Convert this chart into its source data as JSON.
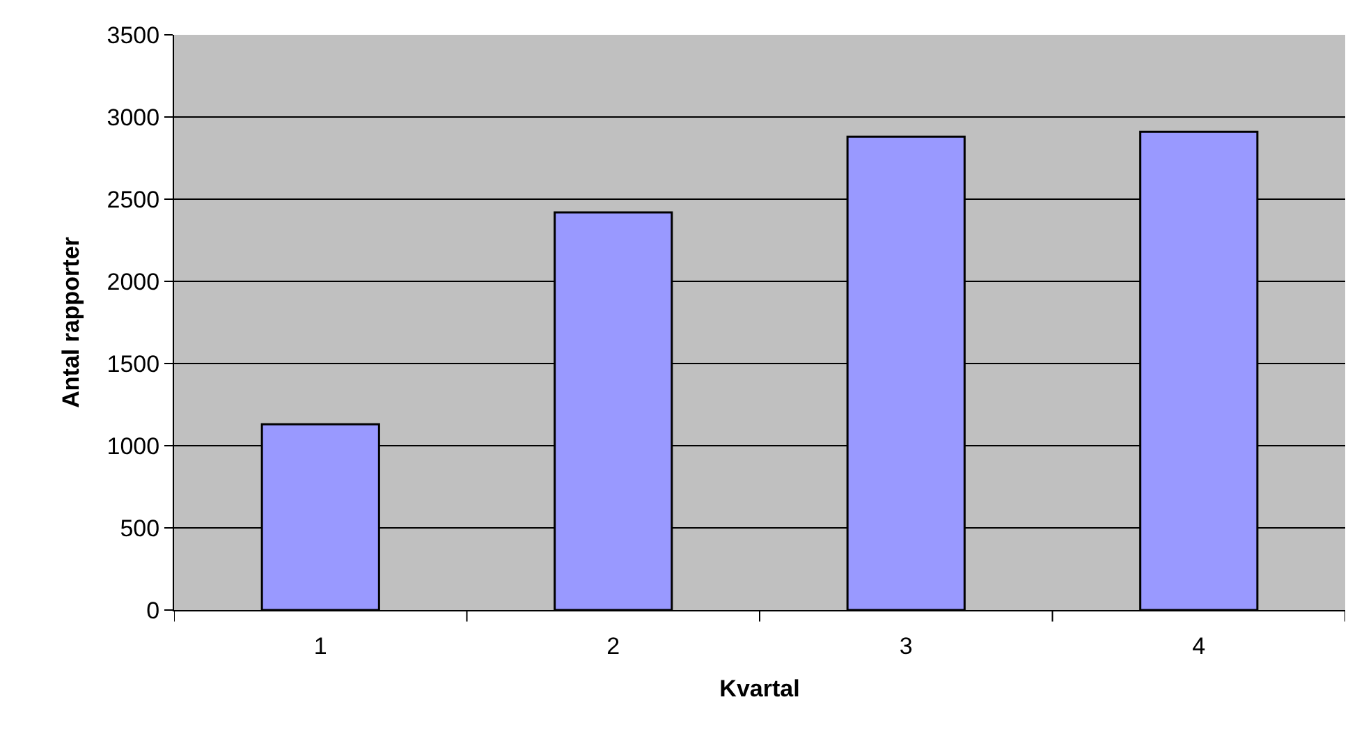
{
  "chart_data": {
    "type": "bar",
    "xlabel": "Kvartal",
    "ylabel": "Antal rapporter",
    "categories": [
      "1",
      "2",
      "3",
      "4"
    ],
    "values": [
      1130,
      2420,
      2880,
      2910
    ],
    "color": "#9999ff",
    "ylim": [
      0,
      3500
    ],
    "yticks": [
      0,
      500,
      1000,
      1500,
      2000,
      2500,
      3000,
      3500
    ],
    "grid": "y",
    "legend": false
  }
}
